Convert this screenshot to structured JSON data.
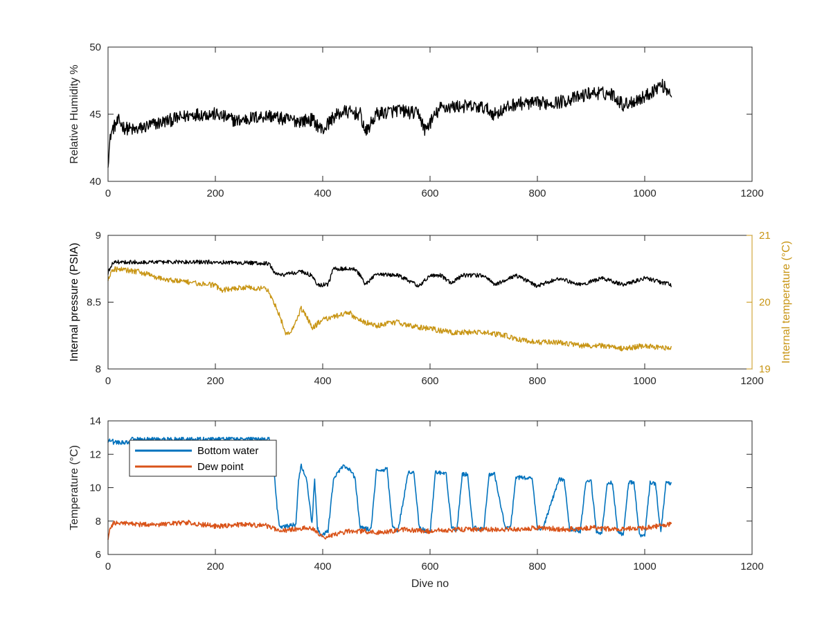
{
  "chart_data": [
    {
      "type": "line",
      "xlabel": "",
      "ylabel": "Relative Humidity %",
      "xlim": [
        0,
        1200
      ],
      "ylim": [
        40,
        50
      ],
      "xticks": [
        0,
        200,
        400,
        600,
        800,
        1000,
        1200
      ],
      "yticks": [
        40,
        45,
        50
      ],
      "series": [
        {
          "color": "#000000",
          "noise": 0.5,
          "x": [
            0,
            5,
            10,
            20,
            30,
            50,
            80,
            120,
            160,
            200,
            240,
            280,
            300,
            330,
            360,
            380,
            400,
            420,
            440,
            470,
            480,
            500,
            540,
            580,
            590,
            620,
            660,
            700,
            720,
            760,
            800,
            840,
            880,
            900,
            940,
            960,
            1000,
            1030,
            1050
          ],
          "y": [
            41.5,
            43.5,
            44.0,
            44.5,
            44.0,
            43.8,
            44.2,
            44.6,
            45.0,
            45.0,
            44.5,
            44.8,
            44.9,
            44.6,
            44.5,
            44.6,
            43.8,
            44.8,
            45.2,
            45.0,
            43.6,
            45.0,
            45.3,
            45.0,
            43.8,
            45.5,
            45.6,
            45.5,
            45.0,
            45.8,
            45.8,
            45.9,
            46.3,
            46.6,
            46.5,
            45.7,
            46.3,
            47.2,
            46.6
          ]
        }
      ]
    },
    {
      "type": "line",
      "xlabel": "",
      "ylabel": "Internal pressure (PSIA)",
      "ylabel_right": "Internal temperature (°C)",
      "xlim": [
        0,
        1200
      ],
      "ylim": [
        8,
        9
      ],
      "ylim_right": [
        19,
        21
      ],
      "xticks": [
        0,
        200,
        400,
        600,
        800,
        1000,
        1200
      ],
      "yticks": [
        8,
        8.5,
        9
      ],
      "yticks_right": [
        19,
        20,
        21
      ],
      "series": [
        {
          "axis": "left",
          "color": "#000000",
          "noise": 0.015,
          "x": [
            0,
            10,
            100,
            200,
            300,
            310,
            320,
            360,
            380,
            390,
            410,
            420,
            460,
            470,
            480,
            500,
            540,
            580,
            600,
            620,
            640,
            660,
            700,
            720,
            760,
            800,
            840,
            880,
            920,
            960,
            1000,
            1050
          ],
          "y": [
            8.72,
            8.8,
            8.8,
            8.8,
            8.79,
            8.72,
            8.7,
            8.73,
            8.7,
            8.63,
            8.63,
            8.75,
            8.75,
            8.7,
            8.63,
            8.71,
            8.7,
            8.62,
            8.7,
            8.7,
            8.64,
            8.7,
            8.7,
            8.63,
            8.7,
            8.62,
            8.68,
            8.63,
            8.68,
            8.63,
            8.68,
            8.63
          ]
        },
        {
          "axis": "right",
          "color": "#C89514",
          "noise": 0.04,
          "x": [
            0,
            10,
            60,
            100,
            200,
            210,
            250,
            290,
            300,
            320,
            330,
            340,
            360,
            370,
            380,
            400,
            410,
            450,
            460,
            500,
            540,
            560,
            600,
            640,
            660,
            700,
            740,
            760,
            800,
            840,
            880,
            920,
            960,
            1000,
            1050
          ],
          "y": [
            20.35,
            20.5,
            20.45,
            20.35,
            20.25,
            20.18,
            20.22,
            20.2,
            20.15,
            19.8,
            19.55,
            19.55,
            19.9,
            19.8,
            19.6,
            19.75,
            19.75,
            19.85,
            19.75,
            19.65,
            19.7,
            19.65,
            19.6,
            19.55,
            19.55,
            19.55,
            19.5,
            19.45,
            19.4,
            19.4,
            19.35,
            19.35,
            19.3,
            19.35,
            19.3
          ]
        }
      ]
    },
    {
      "type": "line",
      "xlabel": "Dive no",
      "ylabel": "Temperature (°C)",
      "xlim": [
        0,
        1200
      ],
      "ylim": [
        6,
        14
      ],
      "xticks": [
        0,
        200,
        400,
        600,
        800,
        1000,
        1200
      ],
      "yticks": [
        6,
        8,
        10,
        12,
        14
      ],
      "legend_position": "top-left",
      "series": [
        {
          "name": "Bottom water",
          "color": "#0072BD",
          "noise": 0.12,
          "x": [
            0,
            8,
            10,
            40,
            42,
            60,
            100,
            200,
            300,
            310,
            315,
            320,
            350,
            355,
            360,
            370,
            380,
            385,
            390,
            395,
            400,
            410,
            420,
            430,
            440,
            450,
            460,
            470,
            490,
            500,
            520,
            530,
            540,
            560,
            570,
            580,
            600,
            610,
            630,
            640,
            650,
            660,
            670,
            680,
            700,
            710,
            720,
            740,
            750,
            760,
            790,
            800,
            810,
            840,
            850,
            860,
            880,
            890,
            900,
            910,
            920,
            930,
            940,
            950,
            960,
            970,
            980,
            990,
            1000,
            1010,
            1020,
            1030,
            1040,
            1050
          ],
          "y": [
            12.8,
            12.9,
            12.7,
            12.7,
            12.9,
            12.9,
            12.9,
            12.9,
            12.9,
            10.8,
            8.8,
            7.6,
            7.8,
            10.5,
            11.3,
            10.5,
            7.8,
            10.5,
            7.6,
            7.2,
            7.2,
            7.4,
            10.5,
            11.0,
            11.3,
            11.1,
            10.6,
            7.6,
            7.5,
            11.0,
            11.1,
            7.6,
            7.4,
            11.0,
            10.9,
            7.6,
            7.3,
            10.9,
            10.9,
            7.6,
            7.4,
            10.8,
            10.8,
            7.6,
            7.5,
            10.8,
            10.8,
            7.6,
            7.6,
            10.6,
            10.6,
            7.6,
            7.5,
            10.5,
            10.5,
            7.5,
            7.4,
            10.3,
            10.4,
            7.4,
            7.2,
            10.3,
            10.3,
            7.3,
            7.2,
            10.3,
            10.3,
            7.2,
            7.1,
            10.3,
            10.2,
            7.3,
            10.4,
            10.2
          ]
        },
        {
          "name": "Dew point",
          "color": "#D95319",
          "noise": 0.15,
          "x": [
            0,
            5,
            10,
            50,
            100,
            150,
            200,
            250,
            300,
            320,
            350,
            380,
            400,
            450,
            480,
            500,
            550,
            600,
            650,
            700,
            750,
            800,
            850,
            900,
            950,
            1000,
            1050
          ],
          "y": [
            7.0,
            7.6,
            7.9,
            7.8,
            7.8,
            7.9,
            7.7,
            7.8,
            7.7,
            7.4,
            7.5,
            7.6,
            7.0,
            7.4,
            7.4,
            7.3,
            7.5,
            7.4,
            7.5,
            7.5,
            7.5,
            7.6,
            7.5,
            7.6,
            7.5,
            7.6,
            7.8
          ]
        }
      ]
    }
  ]
}
